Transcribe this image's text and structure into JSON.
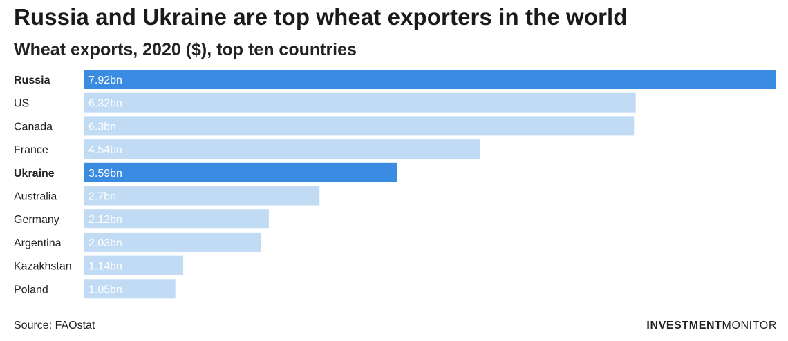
{
  "title": "Russia and Ukraine are top wheat exporters in the world",
  "subtitle": "Wheat exports, 2020 ($), top ten countries",
  "source": "Source: FAOstat",
  "brand": {
    "part1": "INVESTMENT",
    "part2": "MONITOR"
  },
  "colors": {
    "highlight": "#3a8ce3",
    "normal": "#c2dbf5"
  },
  "chart_data": {
    "type": "bar",
    "orientation": "horizontal",
    "categories": [
      "Russia",
      "US",
      "Canada",
      "France",
      "Ukraine",
      "Australia",
      "Germany",
      "Argentina",
      "Kazakhstan",
      "Poland"
    ],
    "values": [
      7.92,
      6.32,
      6.3,
      4.54,
      3.59,
      2.7,
      2.12,
      2.03,
      1.14,
      1.05
    ],
    "value_labels": [
      "7.92bn",
      "6.32bn",
      "6.3bn",
      "4.54bn",
      "3.59bn",
      "2.7bn",
      "2.12bn",
      "2.03bn",
      "1.14bn",
      "1.05bn"
    ],
    "highlighted": [
      "Russia",
      "Ukraine"
    ],
    "title": "Wheat exports, 2020 ($), top ten countries",
    "xlabel": "",
    "ylabel": "",
    "xlim": [
      0,
      7.92
    ],
    "grid": false,
    "legend": "none"
  }
}
